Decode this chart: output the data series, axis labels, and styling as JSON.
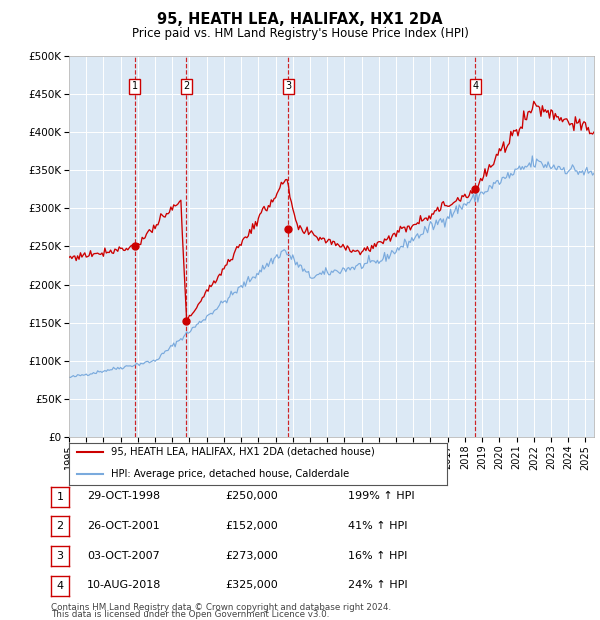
{
  "title": "95, HEATH LEA, HALIFAX, HX1 2DA",
  "subtitle": "Price paid vs. HM Land Registry's House Price Index (HPI)",
  "title_fontsize": 10.5,
  "subtitle_fontsize": 8.5,
  "ylim": [
    0,
    500000
  ],
  "yticks": [
    0,
    50000,
    100000,
    150000,
    200000,
    250000,
    300000,
    350000,
    400000,
    450000,
    500000
  ],
  "ytick_labels": [
    "£0",
    "£50K",
    "£100K",
    "£150K",
    "£200K",
    "£250K",
    "£300K",
    "£350K",
    "£400K",
    "£450K",
    "£500K"
  ],
  "xlim_start": 1995.0,
  "xlim_end": 2025.5,
  "background_color": "#ffffff",
  "chart_bg_color": "#dce9f5",
  "grid_color": "#ffffff",
  "hpi_line_color": "#7aaadd",
  "price_line_color": "#cc0000",
  "vline_color": "#cc0000",
  "sale_points": [
    {
      "label": "1",
      "date_decimal": 1998.83,
      "price": 250000
    },
    {
      "label": "2",
      "date_decimal": 2001.82,
      "price": 152000
    },
    {
      "label": "3",
      "date_decimal": 2007.75,
      "price": 273000
    },
    {
      "label": "4",
      "date_decimal": 2018.61,
      "price": 325000
    }
  ],
  "legend_entries": [
    {
      "label": "95, HEATH LEA, HALIFAX, HX1 2DA (detached house)",
      "color": "#cc0000",
      "lw": 1.5
    },
    {
      "label": "HPI: Average price, detached house, Calderdale",
      "color": "#7aaadd",
      "lw": 1.5
    }
  ],
  "table_rows": [
    {
      "num": "1",
      "date": "29-OCT-1998",
      "price": "£250,000",
      "hpi": "199% ↑ HPI"
    },
    {
      "num": "2",
      "date": "26-OCT-2001",
      "price": "£152,000",
      "hpi": "41% ↑ HPI"
    },
    {
      "num": "3",
      "date": "03-OCT-2007",
      "price": "£273,000",
      "hpi": "16% ↑ HPI"
    },
    {
      "num": "4",
      "date": "10-AUG-2018",
      "price": "£325,000",
      "hpi": "24% ↑ HPI"
    }
  ],
  "footnote1": "Contains HM Land Registry data © Crown copyright and database right 2024.",
  "footnote2": "This data is licensed under the Open Government Licence v3.0."
}
